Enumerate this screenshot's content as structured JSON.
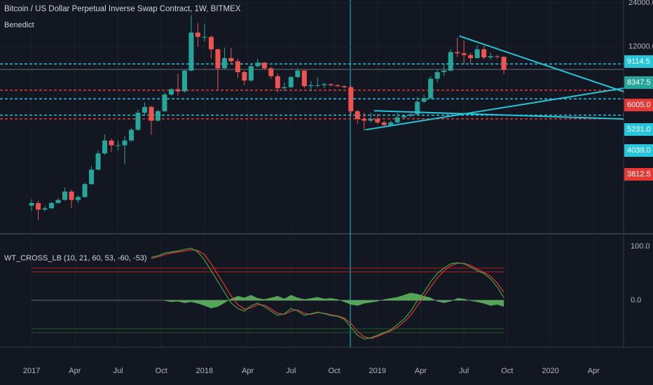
{
  "chart_data": [
    {
      "type": "candlestick",
      "title": "Bitcoin / US Dollar Perpetual Inverse Swap Contract, 1W, BITMEX",
      "subtitle": "Benedict",
      "log": true,
      "up_color": "#26a69a",
      "down_color": "#ef5350",
      "x": [
        0,
        2,
        4,
        6,
        8,
        10,
        12,
        14,
        16,
        18,
        20,
        22,
        24,
        26,
        28,
        30,
        32,
        34,
        36,
        38,
        40,
        42,
        44,
        46,
        48,
        50,
        52,
        54,
        56,
        58,
        60,
        62,
        64,
        66,
        68,
        70,
        72,
        74,
        76,
        78,
        80,
        82,
        84,
        86,
        88,
        90,
        92,
        94,
        96,
        98,
        100,
        102,
        104,
        106,
        108,
        110,
        112,
        114,
        116,
        118,
        120,
        122,
        124,
        126,
        128,
        130,
        132,
        134,
        136,
        138,
        140,
        142
      ],
      "candles": [
        [
          960,
          1060,
          880,
          1000
        ],
        [
          1000,
          1040,
          760,
          900
        ],
        [
          900,
          960,
          880,
          920
        ],
        [
          920,
          1020,
          910,
          1000
        ],
        [
          1000,
          1080,
          990,
          1050
        ],
        [
          1050,
          1280,
          1040,
          1200
        ],
        [
          1200,
          1240,
          920,
          1050
        ],
        [
          1050,
          1130,
          1000,
          1100
        ],
        [
          1100,
          1380,
          1090,
          1350
        ],
        [
          1350,
          1800,
          1340,
          1700
        ],
        [
          1700,
          2300,
          1690,
          2200
        ],
        [
          2200,
          2980,
          2150,
          2700
        ],
        [
          2700,
          2780,
          2250,
          2500
        ],
        [
          2500,
          2700,
          2300,
          2500
        ],
        [
          2500,
          2900,
          1850,
          2700
        ],
        [
          2700,
          3300,
          2650,
          3200
        ],
        [
          3200,
          4400,
          3150,
          4200
        ],
        [
          4200,
          4950,
          4050,
          4600
        ],
        [
          4600,
          4700,
          2950,
          3700
        ],
        [
          3700,
          4400,
          3650,
          4300
        ],
        [
          4300,
          5800,
          4250,
          5600
        ],
        [
          5600,
          6200,
          5500,
          6100
        ],
        [
          6100,
          7800,
          5500,
          5900
        ],
        [
          5900,
          8300,
          5800,
          8200
        ],
        [
          8200,
          19800,
          8100,
          15000
        ],
        [
          15000,
          17400,
          12000,
          14000
        ],
        [
          14000,
          17300,
          13000,
          14000
        ],
        [
          14000,
          14300,
          9900,
          11500
        ],
        [
          11500,
          11600,
          6000,
          8500
        ],
        [
          8500,
          11800,
          8400,
          10000
        ],
        [
          10000,
          11700,
          9000,
          9500
        ],
        [
          9500,
          9900,
          7300,
          8000
        ],
        [
          8000,
          8200,
          6500,
          7000
        ],
        [
          7000,
          9000,
          6900,
          8800
        ],
        [
          8800,
          9900,
          8600,
          9300
        ],
        [
          9300,
          9400,
          8300,
          8500
        ],
        [
          8500,
          8700,
          7200,
          7500
        ],
        [
          7500,
          7800,
          5800,
          6200
        ],
        [
          6200,
          6800,
          5900,
          6300
        ],
        [
          6300,
          7500,
          6200,
          7400
        ],
        [
          7400,
          8500,
          7300,
          8200
        ],
        [
          8200,
          8250,
          6200,
          6400
        ],
        [
          6400,
          6950,
          5900,
          6500
        ],
        [
          6500,
          7400,
          6300,
          6500
        ],
        [
          6500,
          6800,
          6200,
          6600
        ],
        [
          6600,
          6700,
          6400,
          6500
        ],
        [
          6500,
          6600,
          6300,
          6400
        ],
        [
          6400,
          6500,
          6200,
          6300
        ],
        [
          6300,
          6450,
          4000,
          4300
        ],
        [
          4300,
          4400,
          3500,
          3800
        ],
        [
          3800,
          4200,
          3150,
          3700
        ],
        [
          3700,
          4200,
          3600,
          3800
        ],
        [
          3800,
          4100,
          3500,
          3600
        ],
        [
          3600,
          3700,
          3350,
          3450
        ],
        [
          3450,
          3700,
          3400,
          3600
        ],
        [
          3600,
          4200,
          3550,
          3900
        ],
        [
          3900,
          4050,
          3800,
          4000
        ],
        [
          4000,
          4150,
          3900,
          4100
        ],
        [
          4100,
          5400,
          4050,
          5000
        ],
        [
          5000,
          5600,
          4900,
          5300
        ],
        [
          5300,
          7500,
          5200,
          7200
        ],
        [
          7200,
          8400,
          6800,
          8000
        ],
        [
          8000,
          9100,
          7500,
          8200
        ],
        [
          8200,
          11500,
          8100,
          11000
        ],
        [
          11000,
          13900,
          10200,
          10800
        ],
        [
          10800,
          13200,
          9100,
          10500
        ],
        [
          10500,
          10900,
          9100,
          10000
        ],
        [
          10000,
          12300,
          9900,
          11500
        ],
        [
          11500,
          12100,
          9800,
          10100
        ],
        [
          10100,
          10950,
          9800,
          10300
        ],
        [
          10300,
          10500,
          9900,
          10200
        ],
        [
          10200,
          10300,
          7800,
          8300
        ]
      ],
      "xlim": [
        -9.5,
        178
      ],
      "ylim": [
        627,
        25170
      ],
      "yticks": [
        {
          "value": 24000,
          "label": "24000.0"
        },
        {
          "value": 12000,
          "label": "12000.0"
        }
      ],
      "xticks": [
        {
          "value": 0,
          "label": "2017"
        },
        {
          "value": 13,
          "label": "Apr"
        },
        {
          "value": 26,
          "label": "Jul"
        },
        {
          "value": 39,
          "label": "Oct"
        },
        {
          "value": 52,
          "label": "2018"
        },
        {
          "value": 65,
          "label": "Apr"
        },
        {
          "value": 78,
          "label": "Jul"
        },
        {
          "value": 91,
          "label": "Oct"
        },
        {
          "value": 104,
          "label": "2019"
        },
        {
          "value": 117,
          "label": "Apr"
        },
        {
          "value": 130,
          "label": "Jul"
        },
        {
          "value": 143,
          "label": "Oct"
        },
        {
          "value": 156,
          "label": "2020"
        },
        {
          "value": 169,
          "label": "Apr"
        }
      ],
      "levels": [
        {
          "value": 9114.5,
          "label": "9114.5",
          "color": "#26c6da",
          "dashed": true
        },
        {
          "value": 8347.5,
          "label": "8347.5",
          "color": "#26a69a",
          "line_color": "#4a4f5c",
          "dashed": false
        },
        {
          "value": 6005,
          "label": "6005.0",
          "color": "#e53935",
          "dashed": true
        },
        {
          "value": 5231,
          "label": "5231.0",
          "color": "#26c6da",
          "dashed": true
        },
        {
          "value": 4039,
          "label": "4039.0",
          "color": "#26c6da",
          "dashed": true
        },
        {
          "value": 3812.5,
          "label": "3812.5",
          "color": "#e53935",
          "dashed": true
        }
      ],
      "trendlines": [
        {
          "color": "#26c6da",
          "points": [
            [
              128.6,
              14200
            ],
            [
              178,
              5870
            ]
          ]
        },
        {
          "color": "#26c6da",
          "points": [
            [
              100.4,
              3200
            ],
            [
              178,
              6200
            ]
          ]
        },
        {
          "color": "#26c6da",
          "points": [
            [
              103,
              4330
            ],
            [
              178,
              3800
            ]
          ]
        }
      ],
      "grid": true
    },
    {
      "type": "line",
      "title": "WT_CROSS_LB (10, 21, 60, 53, -60, -53)",
      "x": [
        0,
        2,
        4,
        6,
        8,
        10,
        12,
        14,
        16,
        18,
        20,
        22,
        24,
        26,
        28,
        30,
        32,
        34,
        36,
        38,
        40,
        42,
        44,
        46,
        48,
        50,
        52,
        54,
        56,
        58,
        60,
        62,
        64,
        66,
        68,
        70,
        72,
        74,
        76,
        78,
        80,
        82,
        84,
        86,
        88,
        90,
        92,
        94,
        96,
        98,
        100,
        102,
        104,
        106,
        108,
        110,
        112,
        114,
        116,
        118,
        120,
        122,
        124,
        126,
        128,
        130,
        132,
        134,
        136,
        138,
        140,
        142
      ],
      "xlim": [
        -9.5,
        178
      ],
      "ylim": [
        -86,
        120
      ],
      "yticks": [
        {
          "value": 100,
          "label": "100.0"
        },
        {
          "value": 0,
          "label": "0.0"
        }
      ],
      "levels": [
        {
          "value": 60,
          "color": "#b71c1c"
        },
        {
          "value": 53,
          "color": "#b71c1c"
        },
        {
          "value": 0,
          "color": "#6a6d78"
        },
        {
          "value": -53,
          "color": "#1b5e20"
        },
        {
          "value": -60,
          "color": "#1b5e20"
        }
      ],
      "series": [
        {
          "color": "#5fbf5f",
          "fill": true,
          "values": [
            null,
            null,
            null,
            null,
            null,
            null,
            null,
            null,
            null,
            null,
            null,
            null,
            null,
            null,
            null,
            null,
            null,
            null,
            null,
            null,
            -1,
            -3,
            -2,
            -5,
            -3,
            -6,
            -10,
            -15,
            -12,
            -5,
            3,
            8,
            5,
            10,
            4,
            2,
            5,
            8,
            3,
            10,
            5,
            2,
            4,
            6,
            3,
            4,
            2,
            -3,
            -8,
            -10,
            -6,
            -4,
            -2,
            2,
            4,
            6,
            10,
            14,
            12,
            8,
            5,
            -2,
            -5,
            -2,
            4,
            3,
            -1,
            -3,
            -6,
            -10,
            -8,
            -12
          ]
        },
        {
          "color": "#e53935",
          "values": [
            null,
            null,
            null,
            null,
            null,
            null,
            null,
            null,
            null,
            null,
            null,
            null,
            null,
            null,
            null,
            null,
            null,
            null,
            78,
            81,
            85,
            88,
            90,
            92,
            94,
            93,
            85,
            68,
            48,
            28,
            8,
            -8,
            -16,
            -14,
            -8,
            -9,
            -16,
            -24,
            -26,
            -20,
            -18,
            -24,
            -26,
            -23,
            -24,
            -27,
            -29,
            -33,
            -43,
            -58,
            -68,
            -71,
            -67,
            -62,
            -57,
            -50,
            -40,
            -28,
            -10,
            7,
            25,
            42,
            55,
            64,
            69,
            69,
            65,
            58,
            52,
            45,
            32,
            15
          ]
        },
        {
          "color": "#43a047",
          "values": [
            null,
            null,
            null,
            null,
            null,
            null,
            null,
            null,
            null,
            null,
            null,
            null,
            null,
            null,
            null,
            null,
            null,
            null,
            80,
            83,
            88,
            90,
            92,
            95,
            97,
            90,
            75,
            55,
            35,
            15,
            -5,
            -15,
            -20,
            -10,
            -5,
            -12,
            -20,
            -28,
            -25,
            -15,
            -20,
            -28,
            -25,
            -22,
            -25,
            -28,
            -30,
            -35,
            -50,
            -65,
            -72,
            -70,
            -65,
            -60,
            -55,
            -45,
            -35,
            -20,
            0,
            15,
            35,
            50,
            60,
            68,
            70,
            68,
            62,
            55,
            50,
            40,
            25,
            5
          ]
        }
      ]
    }
  ]
}
